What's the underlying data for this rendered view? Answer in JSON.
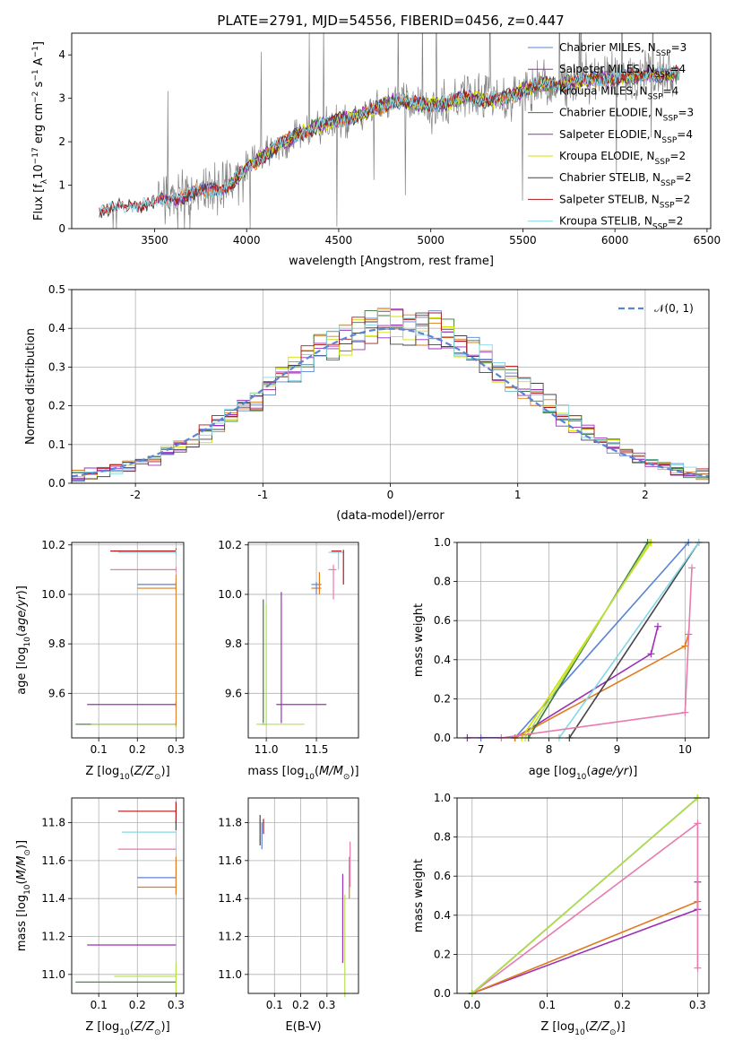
{
  "figure_title": "PLATE=2791, MJD=54556, FIBERID=0456, z=0.447",
  "colors": {
    "Chabrier MILES": "#5b84d4",
    "Salpeter MILES": "#9b2fb5",
    "Kroupa MILES": "#e07b20",
    "Chabrier ELODIE": "#3a7a3a",
    "Salpeter ELODIE": "#9b2fb5",
    "Kroupa ELODIE": "#d2e000",
    "Chabrier STELIB": "#444444",
    "Salpeter STELIB": "#b01818",
    "Kroupa STELIB": "#84d8e6",
    "data": "#808080",
    "normal": "#5b84d4",
    "extra_pink": "#e87aad",
    "extra_lime": "#b6e04a"
  },
  "chart_data": [
    {
      "id": "spectrum",
      "type": "line",
      "xlabel": "wavelength [Angstrom, rest frame]",
      "ylabel": "Flux [f_λ10^-17 erg cm^-2 s^-1 A^-1]",
      "xlim": [
        3050,
        6520
      ],
      "ylim": [
        0,
        4.5
      ],
      "xticks": [
        3500,
        4000,
        4500,
        5000,
        5500,
        6000,
        6500
      ],
      "yticks": [
        0,
        1,
        2,
        3,
        4
      ],
      "grid": false,
      "legend_position": "right",
      "continuum": {
        "x": [
          3200,
          3300,
          3400,
          3500,
          3600,
          3700,
          3800,
          3900,
          4000,
          4100,
          4200,
          4300,
          4400,
          4500,
          4600,
          4700,
          4800,
          4900,
          5000,
          5100,
          5200,
          5300,
          5400,
          5500,
          5600,
          5700,
          5800,
          5900,
          6000,
          6100,
          6200,
          6300,
          6350
        ],
        "y": [
          0.4,
          0.5,
          0.55,
          0.6,
          0.7,
          0.8,
          0.9,
          0.95,
          1.4,
          1.7,
          2.0,
          2.2,
          2.4,
          2.5,
          2.6,
          2.75,
          2.95,
          2.9,
          2.85,
          2.9,
          3.05,
          2.95,
          3.0,
          3.2,
          3.35,
          3.3,
          3.4,
          3.45,
          3.45,
          3.5,
          3.55,
          3.55,
          3.6
        ]
      },
      "series": [
        {
          "name": "Chabrier MILES, N_SSP=3",
          "label_main": "Chabrier MILES, N",
          "label_sub": "SSP",
          "label_tail": "=3"
        },
        {
          "name": "Salpeter MILES, N_SSP=4",
          "label_main": "Salpeter MILES, N",
          "label_sub": "SSP",
          "label_tail": "=4"
        },
        {
          "name": "Kroupa MILES, N_SSP=4",
          "label_main": "Kroupa MILES, N",
          "label_sub": "SSP",
          "label_tail": "=4"
        },
        {
          "name": "Chabrier ELODIE, N_SSP=3",
          "label_main": "Chabrier ELODIE, N",
          "label_sub": "SSP",
          "label_tail": "=3"
        },
        {
          "name": "Salpeter ELODIE, N_SSP=4",
          "label_main": "Salpeter ELODIE, N",
          "label_sub": "SSP",
          "label_tail": "=4"
        },
        {
          "name": "Kroupa ELODIE, N_SSP=2",
          "label_main": "Kroupa ELODIE, N",
          "label_sub": "SSP",
          "label_tail": "=2"
        },
        {
          "name": "Chabrier STELIB, N_SSP=2",
          "label_main": "Chabrier STELIB, N",
          "label_sub": "SSP",
          "label_tail": "=2"
        },
        {
          "name": "Salpeter STELIB, N_SSP=2",
          "label_main": "Salpeter STELIB, N",
          "label_sub": "SSP",
          "label_tail": "=2"
        },
        {
          "name": "Kroupa STELIB, N_SSP=2",
          "label_main": "Kroupa STELIB, N",
          "label_sub": "SSP",
          "label_tail": "=2"
        }
      ]
    },
    {
      "id": "residuals",
      "type": "line",
      "xlabel": "(data-model)/error",
      "ylabel": "Normed distribution",
      "xlim": [
        -2.5,
        2.5
      ],
      "ylim": [
        0,
        0.5
      ],
      "xticks": [
        -2,
        -1,
        0,
        1,
        2
      ],
      "yticks": [
        0.0,
        0.1,
        0.2,
        0.3,
        0.4,
        0.5
      ],
      "grid": true,
      "legend_position": "top-right",
      "normal_label": "𝒩(0, 1)",
      "bin_width": 0.1
    },
    {
      "id": "age_vs_Z",
      "type": "scatter",
      "xlabel": "Z [log10(Z/Z⊙)]",
      "ylabel": "age [log10(age/yr)]",
      "xlim": [
        0.03,
        0.32
      ],
      "ylim": [
        9.42,
        10.21
      ],
      "xticks": [
        0.1,
        0.2,
        0.3
      ],
      "yticks": [
        9.6,
        9.8,
        10.0,
        10.2
      ],
      "grid": true,
      "segments": [
        {
          "color": "#5b84d4",
          "x": [
            0.2,
            0.3
          ],
          "y": 10.04
        },
        {
          "color": "#e07b20",
          "x": [
            0.2,
            0.3
          ],
          "y": 10.025
        },
        {
          "color": "#e87aad",
          "x": [
            0.13,
            0.3
          ],
          "y": 10.1
        },
        {
          "color": "#b01818",
          "x": [
            0.13,
            0.3
          ],
          "y": 10.175
        },
        {
          "color": "#84d8e6",
          "x": [
            0.15,
            0.3
          ],
          "y": 10.17
        },
        {
          "color": "#9b2fb5",
          "x": [
            0.07,
            0.3
          ],
          "y": 9.555
        },
        {
          "color": "#3a7a3a",
          "x": [
            0.04,
            0.3
          ],
          "y": 9.475
        },
        {
          "color": "#b6e04a",
          "x": [
            0.08,
            0.3
          ],
          "y": 9.475
        }
      ]
    },
    {
      "id": "age_vs_mass",
      "type": "scatter",
      "xlabel": "mass [log10(M/M⊙)]",
      "ylabel": "",
      "xlim": [
        10.82,
        11.92
      ],
      "ylim": [
        9.42,
        10.21
      ],
      "xticks": [
        11.0,
        11.5
      ],
      "yticks": [
        9.6,
        9.8,
        10.0,
        10.2
      ],
      "grid": true
    },
    {
      "id": "massweight_vs_age",
      "type": "line",
      "xlabel": "age [log10(age/yr)]",
      "ylabel": "mass weight",
      "xlim": [
        6.65,
        10.35
      ],
      "ylim": [
        0,
        1
      ],
      "xticks": [
        7,
        8,
        9,
        10
      ],
      "yticks": [
        0.0,
        0.2,
        0.4,
        0.6,
        0.8,
        1.0
      ],
      "grid": true,
      "series": [
        {
          "color": "#5b84d4",
          "x": [
            7.0,
            7.5,
            10.05
          ],
          "y": [
            0.0,
            0.0,
            1.0
          ]
        },
        {
          "color": "#9b2fb5",
          "x": [
            6.8,
            7.5,
            9.5,
            9.6
          ],
          "y": [
            0.0,
            0.0,
            0.43,
            0.57
          ]
        },
        {
          "color": "#e07b20",
          "x": [
            7.5,
            10.0,
            10.05
          ],
          "y": [
            0.0,
            0.47,
            0.53
          ]
        },
        {
          "color": "#3a7a3a",
          "x": [
            7.7,
            9.45
          ],
          "y": [
            0.0,
            1.0
          ]
        },
        {
          "color": "#d2e000",
          "x": [
            7.6,
            9.5
          ],
          "y": [
            0.0,
            1.0
          ]
        },
        {
          "color": "#b6e04a",
          "x": [
            7.65,
            9.48
          ],
          "y": [
            0.0,
            1.0
          ]
        },
        {
          "color": "#444444",
          "x": [
            8.3,
            10.2
          ],
          "y": [
            0.0,
            1.0
          ]
        },
        {
          "color": "#84d8e6",
          "x": [
            8.15,
            10.2
          ],
          "y": [
            0.0,
            1.0
          ]
        },
        {
          "color": "#e87aad",
          "x": [
            7.3,
            10.0,
            10.1
          ],
          "y": [
            0.0,
            0.13,
            0.87
          ]
        }
      ]
    },
    {
      "id": "mass_vs_Z",
      "type": "scatter",
      "xlabel": "Z [log10(Z/Z⊙)]",
      "ylabel": "mass [log10(M/M⊙)]",
      "xlim": [
        0.03,
        0.32
      ],
      "ylim": [
        10.9,
        11.93
      ],
      "xticks": [
        0.1,
        0.2,
        0.3
      ],
      "yticks": [
        11.0,
        11.2,
        11.4,
        11.6,
        11.8
      ],
      "grid": true,
      "segments": [
        {
          "color": "#b01818",
          "x": [
            0.15,
            0.3
          ],
          "y": 11.86
        },
        {
          "color": "#84d8e6",
          "x": [
            0.16,
            0.3
          ],
          "y": 11.75
        },
        {
          "color": "#e87aad",
          "x": [
            0.15,
            0.3
          ],
          "y": 11.66
        },
        {
          "color": "#5b84d4",
          "x": [
            0.2,
            0.3
          ],
          "y": 11.51
        },
        {
          "color": "#e07b20",
          "x": [
            0.2,
            0.3
          ],
          "y": 11.46
        },
        {
          "color": "#9b2fb5",
          "x": [
            0.07,
            0.3
          ],
          "y": 11.155
        },
        {
          "color": "#b6e04a",
          "x": [
            0.14,
            0.3
          ],
          "y": 10.99
        },
        {
          "color": "#3a7a3a",
          "x": [
            0.04,
            0.3
          ],
          "y": 10.96
        }
      ]
    },
    {
      "id": "mass_vs_EBV",
      "type": "scatter",
      "xlabel": "E(B-V)",
      "ylabel": "",
      "xlim": [
        0.0,
        0.42
      ],
      "ylim": [
        10.9,
        11.93
      ],
      "xticks": [
        0.1,
        0.2,
        0.3
      ],
      "yticks": [
        11.0,
        11.2,
        11.4,
        11.6,
        11.8
      ],
      "grid": true,
      "segments": [
        {
          "color": "#444444",
          "x": 0.045,
          "y": [
            11.68,
            11.84
          ]
        },
        {
          "color": "#5b84d4",
          "x": 0.052,
          "y": [
            11.66,
            11.8
          ]
        },
        {
          "color": "#b01818",
          "x": 0.058,
          "y": [
            11.74,
            11.82
          ]
        },
        {
          "color": "#9b2fb5",
          "x": 0.36,
          "y": [
            11.06,
            11.53
          ]
        },
        {
          "color": "#b6e04a",
          "x": 0.368,
          "y": [
            10.88,
            11.42
          ]
        },
        {
          "color": "#e07b20",
          "x": 0.385,
          "y": [
            11.4,
            11.62
          ]
        },
        {
          "color": "#e87aad",
          "x": 0.388,
          "y": [
            11.46,
            11.7
          ]
        }
      ]
    },
    {
      "id": "massweight_vs_Z",
      "type": "line",
      "xlabel": "Z [log10(Z/Z⊙)]",
      "ylabel": "mass weight",
      "xlim": [
        -0.02,
        0.315
      ],
      "ylim": [
        0,
        1
      ],
      "xticks": [
        0.0,
        0.1,
        0.2,
        0.3
      ],
      "yticks": [
        0.0,
        0.2,
        0.4,
        0.6,
        0.8,
        1.0
      ],
      "grid": true,
      "series": [
        {
          "color": "#9b2fb5",
          "x": [
            0.0,
            0.3,
            0.3
          ],
          "y": [
            0.0,
            0.43,
            0.57
          ]
        },
        {
          "color": "#e07b20",
          "x": [
            0.0,
            0.3
          ],
          "y": [
            0.0,
            0.47
          ]
        },
        {
          "color": "#e87aad",
          "x": [
            0.0,
            0.3,
            0.3
          ],
          "y": [
            0.0,
            0.87,
            0.13
          ]
        },
        {
          "color": "#84d8e6",
          "x": [
            0.0,
            0.3
          ],
          "y": [
            0.0,
            1.0
          ]
        },
        {
          "color": "#3a7a3a",
          "x": [
            0.0,
            0.3
          ],
          "y": [
            0.0,
            1.0
          ]
        },
        {
          "color": "#b6e04a",
          "x": [
            0.0,
            0.3
          ],
          "y": [
            0.0,
            1.0
          ]
        }
      ]
    }
  ]
}
